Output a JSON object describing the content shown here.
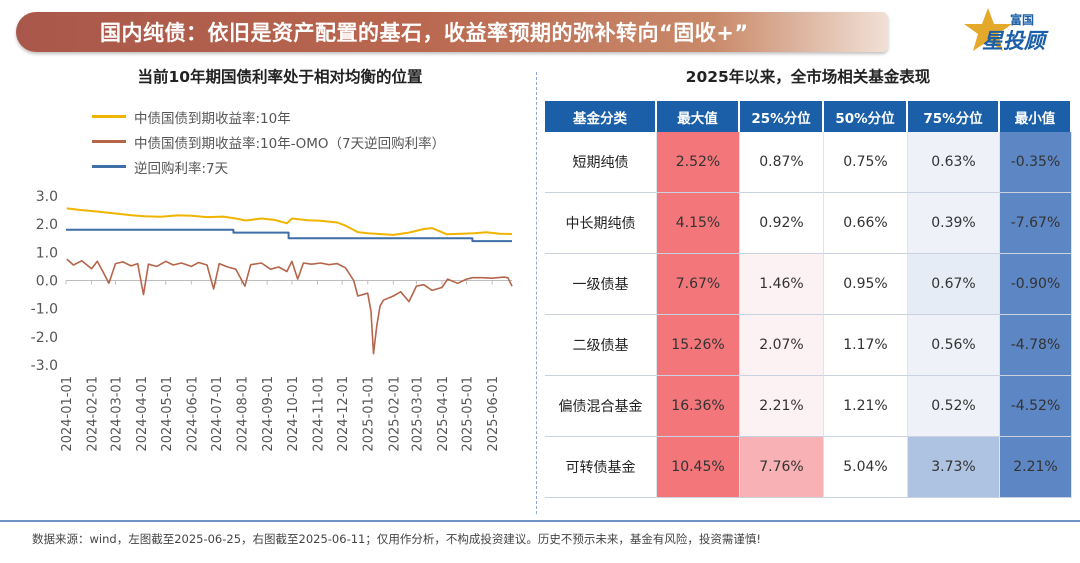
{
  "header": {
    "title": "国内纯债：依旧是资产配置的基石，收益率预期的弥补转向“固收+”",
    "brand_small": "富国",
    "brand_large": "星投顾"
  },
  "colors": {
    "banner": "#b0604c",
    "table_header": "#1b5fa8",
    "series_10y": "#f0b400",
    "series_spread": "#b5654a",
    "series_repo": "#3f6fa6"
  },
  "chart_data": {
    "type": "line",
    "title": "当前10年期国债利率处于相对均衡的位置",
    "x_tick_labels": [
      "2024-01-01",
      "2024-02-01",
      "2024-03-01",
      "2024-04-01",
      "2024-05-01",
      "2024-06-01",
      "2024-07-01",
      "2024-08-01",
      "2024-09-01",
      "2024-10-01",
      "2024-11-01",
      "2024-12-01",
      "2025-01-01",
      "2025-02-01",
      "2025-03-01",
      "2025-04-01",
      "2025-05-01",
      "2025-06-01"
    ],
    "x_range": [
      "2024-01-01",
      "2025-06-25"
    ],
    "y_tick_labels": [
      "3.0",
      "2.0",
      "1.0",
      "0.0",
      "-1.0",
      "-2.0",
      "-3.0"
    ],
    "ylim": [
      -3.0,
      3.0
    ],
    "grid": false,
    "legend_position": "top-left",
    "series": [
      {
        "name": "中债国债到期收益率:10年",
        "color": "#f0b400",
        "points": [
          [
            "2024-01-02",
            2.56
          ],
          [
            "2024-01-20",
            2.5
          ],
          [
            "2024-02-10",
            2.44
          ],
          [
            "2024-03-01",
            2.38
          ],
          [
            "2024-03-20",
            2.32
          ],
          [
            "2024-04-05",
            2.28
          ],
          [
            "2024-04-25",
            2.26
          ],
          [
            "2024-05-15",
            2.31
          ],
          [
            "2024-06-01",
            2.3
          ],
          [
            "2024-06-20",
            2.25
          ],
          [
            "2024-07-10",
            2.27
          ],
          [
            "2024-07-25",
            2.2
          ],
          [
            "2024-08-06",
            2.13
          ],
          [
            "2024-08-25",
            2.2
          ],
          [
            "2024-09-10",
            2.15
          ],
          [
            "2024-09-25",
            2.03
          ],
          [
            "2024-10-01",
            2.2
          ],
          [
            "2024-10-20",
            2.14
          ],
          [
            "2024-11-05",
            2.12
          ],
          [
            "2024-11-25",
            2.06
          ],
          [
            "2024-12-05",
            1.95
          ],
          [
            "2024-12-20",
            1.72
          ],
          [
            "2025-01-01",
            1.68
          ],
          [
            "2025-01-15",
            1.65
          ],
          [
            "2025-02-01",
            1.62
          ],
          [
            "2025-02-20",
            1.7
          ],
          [
            "2025-03-10",
            1.83
          ],
          [
            "2025-03-20",
            1.86
          ],
          [
            "2025-04-07",
            1.64
          ],
          [
            "2025-04-25",
            1.66
          ],
          [
            "2025-05-10",
            1.68
          ],
          [
            "2025-05-25",
            1.71
          ],
          [
            "2025-06-10",
            1.66
          ],
          [
            "2025-06-25",
            1.65
          ]
        ]
      },
      {
        "name": "中债国债到期收益率:10年-OMO（7天逆回购利率）",
        "color": "#b5654a",
        "points": [
          [
            "2024-01-02",
            0.76
          ],
          [
            "2024-01-10",
            0.55
          ],
          [
            "2024-01-20",
            0.7
          ],
          [
            "2024-02-01",
            0.42
          ],
          [
            "2024-02-08",
            0.68
          ],
          [
            "2024-02-15",
            0.3
          ],
          [
            "2024-02-22",
            -0.1
          ],
          [
            "2024-03-01",
            0.6
          ],
          [
            "2024-03-10",
            0.66
          ],
          [
            "2024-03-20",
            0.52
          ],
          [
            "2024-03-28",
            0.6
          ],
          [
            "2024-04-04",
            -0.5
          ],
          [
            "2024-04-10",
            0.58
          ],
          [
            "2024-04-20",
            0.5
          ],
          [
            "2024-05-01",
            0.68
          ],
          [
            "2024-05-10",
            0.55
          ],
          [
            "2024-05-20",
            0.62
          ],
          [
            "2024-06-01",
            0.5
          ],
          [
            "2024-06-10",
            0.64
          ],
          [
            "2024-06-20",
            0.55
          ],
          [
            "2024-06-28",
            -0.3
          ],
          [
            "2024-07-05",
            0.6
          ],
          [
            "2024-07-15",
            0.48
          ],
          [
            "2024-07-25",
            0.4
          ],
          [
            "2024-08-05",
            -0.2
          ],
          [
            "2024-08-12",
            0.56
          ],
          [
            "2024-08-25",
            0.62
          ],
          [
            "2024-09-05",
            0.4
          ],
          [
            "2024-09-15",
            0.48
          ],
          [
            "2024-09-25",
            0.32
          ],
          [
            "2024-10-01",
            0.68
          ],
          [
            "2024-10-08",
            0.05
          ],
          [
            "2024-10-15",
            0.62
          ],
          [
            "2024-10-25",
            0.58
          ],
          [
            "2024-11-05",
            0.62
          ],
          [
            "2024-11-15",
            0.56
          ],
          [
            "2024-11-25",
            0.6
          ],
          [
            "2024-12-05",
            0.45
          ],
          [
            "2024-12-15",
            0.0
          ],
          [
            "2024-12-20",
            -0.55
          ],
          [
            "2025-01-01",
            -0.45
          ],
          [
            "2025-01-05",
            -1.1
          ],
          [
            "2025-01-08",
            -2.6
          ],
          [
            "2025-01-12",
            -1.6
          ],
          [
            "2025-01-16",
            -0.9
          ],
          [
            "2025-01-20",
            -0.7
          ],
          [
            "2025-02-01",
            -0.55
          ],
          [
            "2025-02-10",
            -0.4
          ],
          [
            "2025-02-20",
            -0.75
          ],
          [
            "2025-03-01",
            -0.2
          ],
          [
            "2025-03-10",
            -0.15
          ],
          [
            "2025-03-20",
            -0.35
          ],
          [
            "2025-04-01",
            -0.25
          ],
          [
            "2025-04-08",
            0.05
          ],
          [
            "2025-04-20",
            -0.1
          ],
          [
            "2025-05-01",
            0.05
          ],
          [
            "2025-05-08",
            0.1
          ],
          [
            "2025-05-20",
            0.1
          ],
          [
            "2025-06-01",
            0.08
          ],
          [
            "2025-06-15",
            0.12
          ],
          [
            "2025-06-20",
            0.1
          ],
          [
            "2025-06-25",
            -0.2
          ]
        ]
      },
      {
        "name": "逆回购利率:7天",
        "color": "#3f6fa6",
        "points": [
          [
            "2024-01-01",
            1.8
          ],
          [
            "2024-07-22",
            1.8
          ],
          [
            "2024-07-22",
            1.7
          ],
          [
            "2024-09-27",
            1.7
          ],
          [
            "2024-09-27",
            1.5
          ],
          [
            "2025-05-08",
            1.5
          ],
          [
            "2025-05-08",
            1.4
          ],
          [
            "2025-06-25",
            1.4
          ]
        ]
      }
    ]
  },
  "table": {
    "title": "2025年以来，全市场相关基金表现",
    "headers": [
      "基金分类",
      "最大值",
      "25%分位",
      "50%分位",
      "75%分位",
      "最小值"
    ],
    "rows": [
      {
        "category": "短期纯债",
        "values": [
          "2.52%",
          "0.87%",
          "0.75%",
          "0.63%",
          "-0.35%"
        ],
        "colors": [
          "#f3767a",
          "#ffffff",
          "#ffffff",
          "#eef1f8",
          "#5d86c4"
        ]
      },
      {
        "category": "中长期纯债",
        "values": [
          "4.15%",
          "0.92%",
          "0.66%",
          "0.39%",
          "-7.67%"
        ],
        "colors": [
          "#f3767a",
          "#ffffff",
          "#ffffff",
          "#eef1f8",
          "#5d86c4"
        ]
      },
      {
        "category": "一级债基",
        "values": [
          "7.67%",
          "1.46%",
          "0.95%",
          "0.67%",
          "-0.90%"
        ],
        "colors": [
          "#f3767a",
          "#fdf2f3",
          "#ffffff",
          "#e6ecf6",
          "#5d86c4"
        ]
      },
      {
        "category": "二级债基",
        "values": [
          "15.26%",
          "2.07%",
          "1.17%",
          "0.56%",
          "-4.78%"
        ],
        "colors": [
          "#f3767a",
          "#fdf2f3",
          "#ffffff",
          "#eef1f8",
          "#5d86c4"
        ]
      },
      {
        "category": "偏债混合基金",
        "values": [
          "16.36%",
          "2.21%",
          "1.21%",
          "0.52%",
          "-4.52%"
        ],
        "colors": [
          "#f3767a",
          "#fdf2f3",
          "#ffffff",
          "#eef1f8",
          "#5d86c4"
        ]
      },
      {
        "category": "可转债基金",
        "values": [
          "10.45%",
          "7.76%",
          "5.04%",
          "3.73%",
          "2.21%"
        ],
        "colors": [
          "#f3767a",
          "#f8b1b4",
          "#ffffff",
          "#aec2e2",
          "#5d86c4"
        ]
      }
    ]
  },
  "footer": {
    "note": "数据来源：wind，左图截至2025-06-25，右图截至2025-06-11；仅用作分析，不构成投资建议。历史不预示未来，基金有风险，投资需谨慎!"
  }
}
